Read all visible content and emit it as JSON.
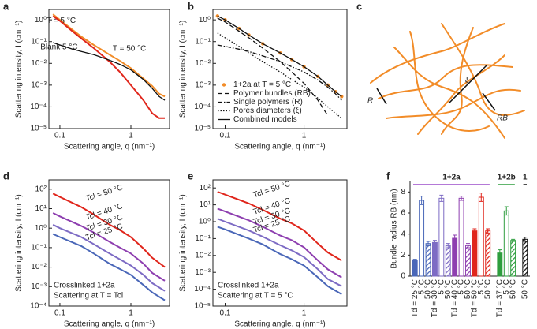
{
  "chart_data": [
    {
      "type": "line",
      "label": "a",
      "xscale": "log",
      "yscale": "log",
      "xlabel": "Scattering angle, q (nm⁻¹)",
      "ylabel": "Scattering intensity, I (cm⁻¹)",
      "xlim": [
        0.07,
        3.5
      ],
      "ylim": [
        1e-05,
        3
      ],
      "xticks": [
        0.1,
        1
      ],
      "yticks": [
        {
          "value": 1e-05,
          "label": "10⁻⁵"
        },
        {
          "value": 0.0001,
          "label": "10⁻⁴"
        },
        {
          "value": 0.001,
          "label": "10⁻³"
        },
        {
          "value": 0.01,
          "label": "10⁻²"
        },
        {
          "value": 0.1,
          "label": "10⁻¹"
        },
        {
          "value": 1,
          "label": "10⁰"
        }
      ],
      "x": [
        0.08,
        0.1,
        0.15,
        0.2,
        0.3,
        0.5,
        0.7,
        1,
        1.5,
        2,
        2.5,
        3
      ],
      "series": [
        {
          "name": "T = 5 °C",
          "color": "#f28c28",
          "style": "solid",
          "values": [
            1.8,
            1.0,
            0.35,
            0.17,
            0.07,
            0.025,
            0.013,
            0.006,
            0.002,
            0.0009,
            0.0004,
            0.0003
          ]
        },
        {
          "name": "T = 50 °C",
          "color": "#e0261c",
          "style": "solid",
          "values": [
            1.5,
            0.9,
            0.3,
            0.14,
            0.05,
            0.012,
            0.004,
            0.001,
            0.0002,
            5e-05,
            3e-05,
            3e-05
          ]
        },
        {
          "name": "Blank 5 °C",
          "color": "#111111",
          "style": "solid",
          "values": [
            0.09,
            0.07,
            0.045,
            0.035,
            0.025,
            0.014,
            0.009,
            0.005,
            0.0018,
            0.0007,
            0.0003,
            0.0002
          ]
        }
      ]
    },
    {
      "type": "line",
      "label": "b",
      "xscale": "log",
      "yscale": "log",
      "legend": "lower left",
      "xlabel": "Scattering angle, q (nm⁻¹)",
      "ylabel": "Scattering intensity, I (cm⁻¹)",
      "xlim": [
        0.07,
        3.5
      ],
      "ylim": [
        1e-05,
        3
      ],
      "xticks": [
        0.1,
        1
      ],
      "yticks": [
        {
          "value": 1e-05,
          "label": "10⁻⁵"
        },
        {
          "value": 0.0001,
          "label": "10⁻⁴"
        },
        {
          "value": 0.001,
          "label": "10⁻³"
        },
        {
          "value": 0.01,
          "label": "10⁻²"
        },
        {
          "value": 0.1,
          "label": "10⁻¹"
        },
        {
          "value": 1,
          "label": "10⁰"
        }
      ],
      "x": [
        0.08,
        0.1,
        0.15,
        0.2,
        0.3,
        0.5,
        0.7,
        1,
        1.5,
        2,
        2.5,
        3
      ],
      "series": [
        {
          "name": "1+2a at T = 5 °C",
          "color": "#f28c28",
          "style": "dots",
          "values": [
            1.5,
            1.0,
            0.4,
            0.2,
            0.08,
            0.03,
            0.015,
            0.007,
            0.0025,
            0.001,
            0.0005,
            0.0003
          ]
        },
        {
          "name": "Polymer bundles (RB)",
          "color": "#111111",
          "style": "dash",
          "values": [
            1.2,
            0.8,
            0.3,
            0.15,
            0.05,
            0.012,
            0.004,
            0.0012,
            0.0002,
            4e-05,
            null,
            null
          ]
        },
        {
          "name": "Single polymers (R)",
          "color": "#111111",
          "style": "dashdot",
          "values": [
            0.07,
            0.06,
            0.045,
            0.035,
            0.022,
            0.012,
            0.007,
            0.004,
            0.0017,
            0.0008,
            0.0004,
            0.0002
          ]
        },
        {
          "name": "Pores diameters (ξ)",
          "color": "#111111",
          "style": "dot",
          "values": [
            0.25,
            0.15,
            0.06,
            0.03,
            0.012,
            0.004,
            0.0018,
            0.0008,
            0.00025,
            0.0001,
            5e-05,
            3e-05
          ]
        },
        {
          "name": "Combined models",
          "color": "#111111",
          "style": "solid",
          "values": [
            1.5,
            1.0,
            0.4,
            0.2,
            0.08,
            0.03,
            0.015,
            0.007,
            0.0025,
            0.001,
            0.0005,
            0.0003
          ]
        }
      ]
    },
    {
      "type": "line",
      "label": "d",
      "xscale": "log",
      "yscale": "log",
      "xlabel": "Scattering angle, q (nm⁻¹)",
      "ylabel": "Scattering intensity, I (cm⁻¹)",
      "notes": [
        "Crosslinked 1+2a",
        "Scattering at T = Tcl"
      ],
      "xlim": [
        0.07,
        3.5
      ],
      "ylim": [
        0.0001,
        300
      ],
      "xticks": [
        0.1,
        1
      ],
      "yticks": [
        {
          "value": 0.0001,
          "label": "10⁻⁴"
        },
        {
          "value": 0.001,
          "label": "10⁻³"
        },
        {
          "value": 0.01,
          "label": "10⁻²"
        },
        {
          "value": 0.1,
          "label": "10⁻¹"
        },
        {
          "value": 1,
          "label": "10⁰"
        },
        {
          "value": 10,
          "label": "10¹"
        },
        {
          "value": 100,
          "label": "10²"
        }
      ],
      "x": [
        0.08,
        0.1,
        0.2,
        0.3,
        0.5,
        0.7,
        1,
        1.5,
        2,
        3
      ],
      "series": [
        {
          "name": "Tcl = 50 °C",
          "color": "#e0261c",
          "style": "solid",
          "values": [
            60,
            40,
            12,
            5,
            1.5,
            0.8,
            0.35,
            0.09,
            0.03,
            0.01
          ]
        },
        {
          "name": "Tcl = 40 °C",
          "color": "#8e3fb0",
          "style": "solid",
          "values": [
            6,
            4,
            1.3,
            0.6,
            0.2,
            0.1,
            0.05,
            0.015,
            0.005,
            0.002
          ]
        },
        {
          "name": "Tcl = 30 °C",
          "color": "#7d6bc4",
          "style": "solid",
          "values": [
            1.5,
            1.0,
            0.35,
            0.15,
            0.05,
            0.025,
            0.012,
            0.004,
            0.0015,
            0.0006
          ]
        },
        {
          "name": "Tcl = 25 °C",
          "color": "#4a67b8",
          "style": "solid",
          "values": [
            0.5,
            0.35,
            0.12,
            0.05,
            0.015,
            0.008,
            0.004,
            0.0012,
            0.0005,
            0.0002
          ]
        }
      ]
    },
    {
      "type": "line",
      "label": "e",
      "xscale": "log",
      "yscale": "log",
      "xlabel": "Scattering angle, q (nm⁻¹)",
      "ylabel": "Scattering intensity, I (cm⁻¹)",
      "notes": [
        "Crosslinked 1+2a",
        "Scattering at T = 5 °C"
      ],
      "xlim": [
        0.07,
        3.5
      ],
      "ylim": [
        1e-05,
        300
      ],
      "xticks": [
        0.1,
        1
      ],
      "yticks": [
        {
          "value": 1e-05,
          "label": "10⁻⁵"
        },
        {
          "value": 0.0001,
          "label": "10⁻⁴"
        },
        {
          "value": 0.001,
          "label": "10⁻³"
        },
        {
          "value": 0.01,
          "label": "10⁻²"
        },
        {
          "value": 0.1,
          "label": "10⁻¹"
        },
        {
          "value": 1,
          "label": "10⁰"
        },
        {
          "value": 10,
          "label": "10¹"
        },
        {
          "value": 100,
          "label": "10²"
        }
      ],
      "x": [
        0.08,
        0.1,
        0.2,
        0.3,
        0.5,
        0.7,
        1,
        1.5,
        2,
        3
      ],
      "series": [
        {
          "name": "Tcl = 50 °C",
          "color": "#e0261c",
          "style": "solid",
          "values": [
            60,
            40,
            12,
            5,
            1.5,
            0.8,
            0.3,
            0.05,
            0.015,
            0.005
          ]
        },
        {
          "name": "Tcl = 40 °C",
          "color": "#8e3fb0",
          "style": "solid",
          "values": [
            6,
            4,
            1.2,
            0.5,
            0.15,
            0.08,
            0.03,
            0.005,
            0.0015,
            0.0005
          ]
        },
        {
          "name": "Tcl = 30 °C",
          "color": "#7d6bc4",
          "style": "solid",
          "values": [
            1.5,
            1.0,
            0.3,
            0.13,
            0.04,
            0.02,
            0.008,
            0.0015,
            0.0004,
            0.00015
          ]
        },
        {
          "name": "Tcl = 25 °C",
          "color": "#4a67b8",
          "style": "solid",
          "values": [
            0.5,
            0.35,
            0.1,
            0.045,
            0.012,
            0.006,
            0.0025,
            0.0005,
            0.00015,
            5e-05
          ]
        }
      ]
    },
    {
      "type": "bar",
      "label": "f",
      "ylabel": "Bundle radius RB (nm)",
      "ylim": [
        0,
        9
      ],
      "yticks": [
        0,
        2,
        4,
        6,
        8
      ],
      "groups": [
        {
          "name": "1+2a",
          "color": "#9b4dca",
          "categories": [
            "Td = 25 °C",
            "5 °C",
            "50 °C",
            "Td = 30 °C",
            "5 °C",
            "50 °C",
            "Td = 40 °C",
            "5 °C",
            "50 °C",
            "Td = 50 °C",
            "5 °C",
            "50 °C"
          ],
          "values": [
            1.5,
            7.2,
            3.1,
            3.2,
            7.4,
            2.9,
            3.6,
            7.4,
            2.9,
            4.3,
            7.5,
            4.3
          ],
          "errors": [
            0.1,
            0.4,
            0.2,
            0.2,
            0.3,
            0.2,
            0.3,
            0.2,
            0.2,
            0.2,
            0.4,
            0.2
          ],
          "colors": [
            "#4a67b8",
            "#4a67b8",
            "#4a67b8",
            "#7d6bc4",
            "#7d6bc4",
            "#7d6bc4",
            "#8e3fb0",
            "#8e3fb0",
            "#8e3fb0",
            "#e0261c",
            "#e0261c",
            "#e0261c"
          ],
          "styles": [
            "solid",
            "open",
            "hatched",
            "solid",
            "open",
            "hatched",
            "solid",
            "open",
            "hatched",
            "solid",
            "open",
            "hatched"
          ]
        },
        {
          "name": "1+2b",
          "color": "#2e9e3e",
          "categories": [
            "Td = 37 °C",
            "5 °C",
            "50 °C"
          ],
          "values": [
            2.2,
            6.2,
            3.4
          ],
          "errors": [
            0.3,
            0.4,
            0.1
          ],
          "colors": [
            "#2e9e3e",
            "#2e9e3e",
            "#2e9e3e"
          ],
          "styles": [
            "solid",
            "open",
            "hatched"
          ]
        },
        {
          "name": "1",
          "color": "#111111",
          "categories": [
            "50 °C"
          ],
          "values": [
            3.5
          ],
          "errors": [
            0.2
          ],
          "colors": [
            "#111111"
          ],
          "styles": [
            "hatched"
          ]
        }
      ]
    }
  ],
  "diagram": {
    "label": "c",
    "annotations": [
      "R",
      "ξ",
      "RB"
    ]
  }
}
